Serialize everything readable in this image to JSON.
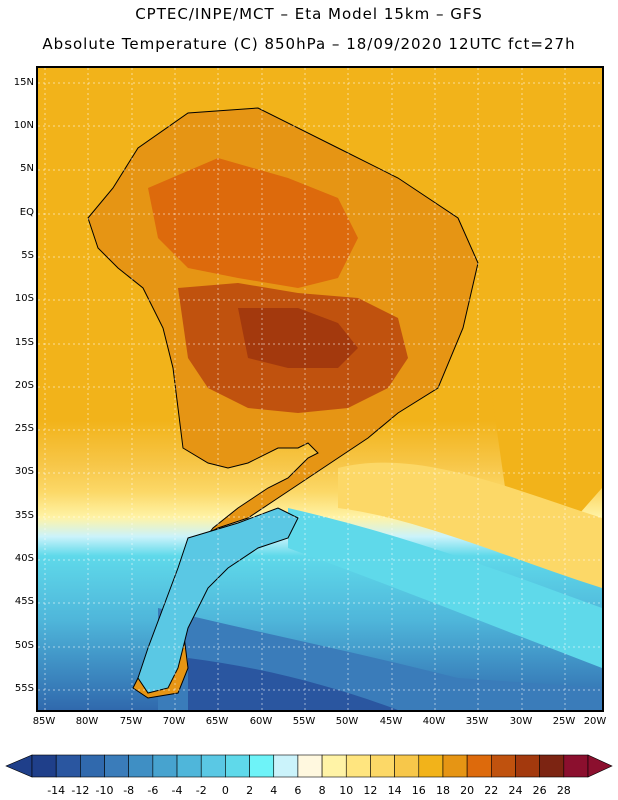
{
  "header": {
    "line1": "CPTEC/INPE/MCT –  Eta Model 15km – GFS",
    "line2": "Absolute Temperature (C) 850hPa – 18/09/2020 12UTC fct=27h"
  },
  "map": {
    "lat_labels": [
      "15N",
      "10N",
      "5N",
      "EQ",
      "5S",
      "10S",
      "15S",
      "20S",
      "25S",
      "30S",
      "35S",
      "40S",
      "45S",
      "50S",
      "55S"
    ],
    "lon_labels": [
      "85W",
      "80W",
      "75W",
      "70W",
      "65W",
      "60W",
      "55W",
      "50W",
      "45W",
      "40W",
      "35W",
      "30W",
      "25W",
      "20W"
    ]
  },
  "colorbar": {
    "ticks": [
      "-14",
      "-12",
      "-10",
      "-8",
      "-6",
      "-4",
      "-2",
      "0",
      "2",
      "4",
      "6",
      "8",
      "10",
      "12",
      "14",
      "16",
      "18",
      "20",
      "22",
      "24",
      "26",
      "28"
    ],
    "colors": [
      "#1f3f8a",
      "#2a56a0",
      "#3069ad",
      "#3a7cba",
      "#3f8fc4",
      "#47a3cf",
      "#4fb6da",
      "#5ac8e4",
      "#5fd9ea",
      "#6ef3f8",
      "#cbf3fb",
      "#fff8df",
      "#fff3a6",
      "#ffe57f",
      "#fcd867",
      "#f7c74a",
      "#f2b31a",
      "#e69514",
      "#dd6a0c",
      "#c0520e",
      "#a3390d",
      "#7c2412",
      "#8b0f2e"
    ]
  }
}
